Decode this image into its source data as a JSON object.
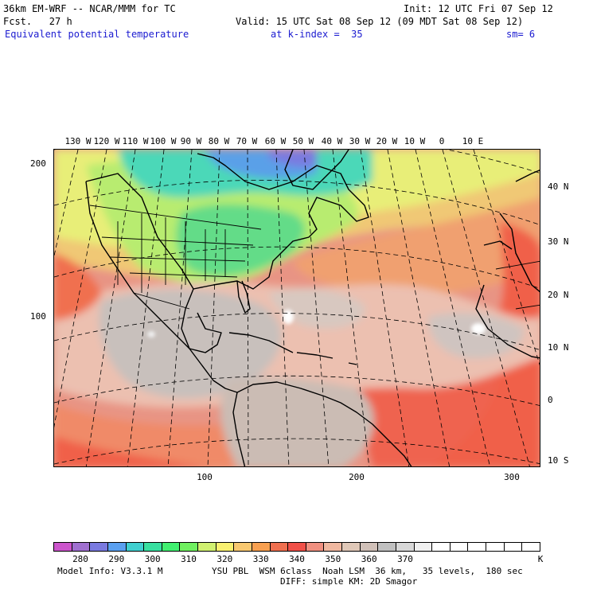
{
  "header": {
    "model_line": "36km EM-WRF -- NCAR/MMM for TC",
    "init_line": "Init: 12 UTC Fri 07 Sep 12",
    "fcst_line": "Fcst.   27 h",
    "valid_line": "Valid: 15 UTC Sat 08 Sep 12 (09 MDT Sat 08 Sep 12)",
    "field_name": "Equivalent potential temperature",
    "level": "at k-index =  35",
    "smoothing": "sm= 6"
  },
  "map": {
    "longitude_labels": [
      "130 W",
      "120 W",
      "110 W",
      "100 W",
      "90 W",
      "80 W",
      "70 W",
      "60 W",
      "50 W",
      "40 W",
      "30 W",
      "20 W",
      "10 W",
      "0",
      "10 E"
    ],
    "latitude_labels": [
      "40 N",
      "30 N",
      "20 N",
      "10 N",
      "0",
      "10 S"
    ],
    "x_grid_ticks": [
      "100",
      "200",
      "300"
    ],
    "y_grid_ticks": [
      "200",
      "100"
    ]
  },
  "colorbar": {
    "labels": [
      "280",
      "290",
      "300",
      "310",
      "320",
      "330",
      "340",
      "350",
      "360",
      "370"
    ],
    "unit": "K",
    "colors": [
      "#cc55cc",
      "#a070d0",
      "#7a7ae0",
      "#5aa0f0",
      "#40d0d0",
      "#38e0a0",
      "#40f070",
      "#70f060",
      "#d0f070",
      "#f8f070",
      "#f8c870",
      "#f8a050",
      "#f07050",
      "#f05048",
      "#f09080",
      "#f0b8a0",
      "#e0c8b8",
      "#d0c0b8",
      "#c0c0c0",
      "#d8d8d8",
      "#f0f0f0",
      "#ffffff",
      "#ffffff",
      "#ffffff",
      "#ffffff",
      "#ffffff",
      "#ffffff"
    ]
  },
  "footer": {
    "model_info": "Model Info: V3.3.1 M",
    "physics": "YSU PBL  WSM 6class  Noah LSM  36 km,   35 levels,  180 sec",
    "diffusion": "DIFF: simple KM: 2D Smagor"
  }
}
